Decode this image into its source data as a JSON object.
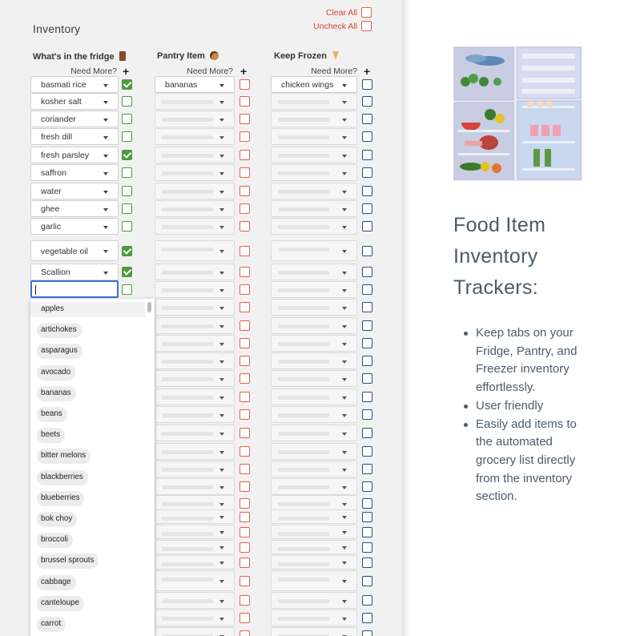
{
  "sheet": {
    "title": "Inventory",
    "clear_all": "Clear All",
    "uncheck_all": "Uncheck All",
    "need_more": "Need More?",
    "plus": "+",
    "fridge_header": "What's in the fridge",
    "pantry_header": "Pantry Item",
    "frozen_header": "Keep Frozen",
    "fridge_items": [
      {
        "name": "basmati rice",
        "checked": true
      },
      {
        "name": "kosher salt",
        "checked": false
      },
      {
        "name": "coriander",
        "checked": false
      },
      {
        "name": "fresh dill",
        "checked": false
      },
      {
        "name": "fresh parsley",
        "checked": true
      },
      {
        "name": "saffron",
        "checked": false
      },
      {
        "name": "water",
        "checked": false
      },
      {
        "name": "ghee",
        "checked": false
      },
      {
        "name": "garlic",
        "checked": false
      },
      {
        "name": "vegetable oil",
        "checked": true
      },
      {
        "name": "Scallion",
        "checked": true
      }
    ],
    "pantry_first": "bananas",
    "frozen_first": "chicken wings",
    "dropdown_options": [
      "apples",
      "artichokes",
      "asparagus",
      "avocado",
      "bananas",
      "beans",
      "beets",
      "bitter melons",
      "blackberries",
      "blueberries",
      "bok choy",
      "broccoli",
      "brussel sprouts",
      "cabbage",
      "canteloupe",
      "carrot"
    ]
  },
  "promo": {
    "heading": [
      "Food Item",
      "Inventory",
      "Trackers:"
    ],
    "bullets": [
      [
        "Keep tabs on your",
        "Fridge, Pantry, and",
        "Freezer inventory",
        "effortlessly."
      ],
      [
        "User friendly"
      ],
      [
        "Easily add items to",
        "the automated",
        "grocery list directly",
        "from the inventory",
        "section."
      ]
    ]
  },
  "colors": {
    "green": "#4e9a3e",
    "red": "#e0614e",
    "blue": "#2c4a8f",
    "link": "#d9442a",
    "promo_text": "#4b5a6a"
  }
}
